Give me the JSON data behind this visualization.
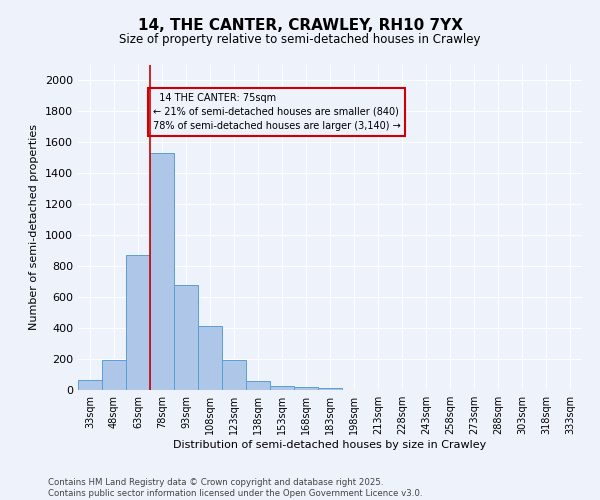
{
  "title": "14, THE CANTER, CRAWLEY, RH10 7YX",
  "subtitle": "Size of property relative to semi-detached houses in Crawley",
  "xlabel": "Distribution of semi-detached houses by size in Crawley",
  "ylabel": "Number of semi-detached properties",
  "footer_line1": "Contains HM Land Registry data © Crown copyright and database right 2025.",
  "footer_line2": "Contains public sector information licensed under the Open Government Licence v3.0.",
  "categories": [
    "33sqm",
    "48sqm",
    "63sqm",
    "78sqm",
    "93sqm",
    "108sqm",
    "123sqm",
    "138sqm",
    "153sqm",
    "168sqm",
    "183sqm",
    "198sqm",
    "213sqm",
    "228sqm",
    "243sqm",
    "258sqm",
    "273sqm",
    "288sqm",
    "303sqm",
    "318sqm",
    "333sqm"
  ],
  "values": [
    65,
    195,
    870,
    1530,
    680,
    415,
    195,
    55,
    25,
    20,
    15,
    0,
    0,
    0,
    0,
    0,
    0,
    0,
    0,
    0,
    0
  ],
  "bar_color": "#aec6e8",
  "bar_edge_color": "#5a9fd4",
  "property_label": "14 THE CANTER: 75sqm",
  "pct_smaller": 21,
  "pct_larger": 78,
  "n_smaller": 840,
  "n_larger": 3140,
  "vline_color": "#cc0000",
  "vline_x_index": 2.5,
  "annotation_box_color": "#cc0000",
  "ylim": [
    0,
    2100
  ],
  "yticks": [
    0,
    200,
    400,
    600,
    800,
    1000,
    1200,
    1400,
    1600,
    1800,
    2000
  ],
  "bg_color": "#eef2fb",
  "grid_color": "#ffffff"
}
